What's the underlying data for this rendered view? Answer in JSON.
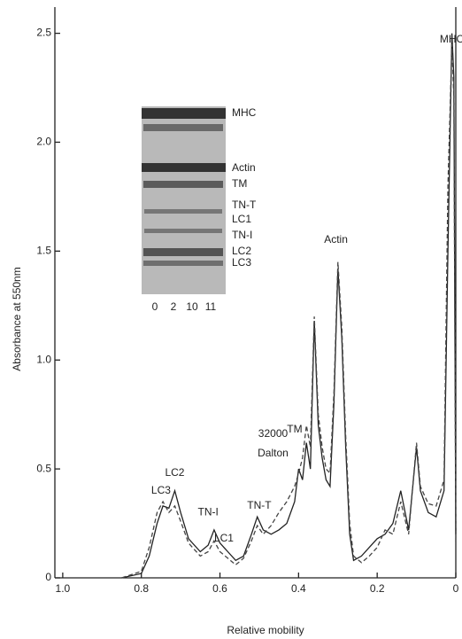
{
  "chart_data": {
    "type": "line",
    "y_label": "Absorbance at 550nm",
    "x_label": "Relative mobility",
    "xlim": [
      1.02,
      0
    ],
    "ylim": [
      0,
      2.6
    ],
    "xticks": [
      {
        "value": 1.0,
        "label": "1.0"
      },
      0.8,
      0.6,
      0.4,
      0.2,
      0
    ],
    "yticks": [
      0,
      0.5,
      {
        "value": 1.0,
        "label": "1.0"
      },
      1.5,
      {
        "value": 2.0,
        "label": "2.0"
      },
      2.5
    ],
    "x": [
      0.85,
      0.8,
      0.78,
      0.76,
      0.745,
      0.73,
      0.715,
      0.7,
      0.68,
      0.65,
      0.63,
      0.615,
      0.6,
      0.58,
      0.56,
      0.54,
      0.52,
      0.505,
      0.49,
      0.47,
      0.45,
      0.43,
      0.41,
      0.4,
      0.39,
      0.38,
      0.37,
      0.36,
      0.35,
      0.34,
      0.33,
      0.32,
      0.31,
      0.3,
      0.29,
      0.28,
      0.27,
      0.26,
      0.24,
      0.22,
      0.2,
      0.18,
      0.16,
      0.14,
      0.12,
      0.1,
      0.09,
      0.07,
      0.05,
      0.03,
      0.02,
      0.01,
      0.005,
      0.0
    ],
    "series": [
      {
        "color": "#222222",
        "dashed": false,
        "values": [
          0.0,
          0.02,
          0.1,
          0.25,
          0.33,
          0.32,
          0.4,
          0.3,
          0.18,
          0.12,
          0.15,
          0.22,
          0.16,
          0.12,
          0.08,
          0.1,
          0.2,
          0.28,
          0.22,
          0.2,
          0.22,
          0.25,
          0.35,
          0.5,
          0.45,
          0.62,
          0.5,
          1.18,
          0.7,
          0.55,
          0.45,
          0.42,
          0.8,
          1.42,
          1.1,
          0.6,
          0.2,
          0.08,
          0.1,
          0.14,
          0.18,
          0.2,
          0.25,
          0.4,
          0.22,
          0.6,
          0.4,
          0.3,
          0.28,
          0.4,
          1.5,
          2.5,
          2.3,
          0.2
        ]
      },
      {
        "color": "#444444",
        "dashed": true,
        "values": [
          0.0,
          0.03,
          0.14,
          0.3,
          0.35,
          0.3,
          0.33,
          0.26,
          0.16,
          0.1,
          0.12,
          0.17,
          0.12,
          0.09,
          0.06,
          0.09,
          0.17,
          0.24,
          0.2,
          0.24,
          0.3,
          0.35,
          0.42,
          0.48,
          0.55,
          0.7,
          0.6,
          1.2,
          0.75,
          0.6,
          0.5,
          0.48,
          0.85,
          1.45,
          1.15,
          0.65,
          0.25,
          0.1,
          0.07,
          0.1,
          0.14,
          0.22,
          0.2,
          0.35,
          0.2,
          0.62,
          0.42,
          0.34,
          0.33,
          0.45,
          1.8,
          2.45,
          2.2,
          0.15
        ]
      }
    ],
    "annotations": [
      {
        "text": "MHC",
        "x": 0.01,
        "y": 2.47
      },
      {
        "text": "Actin",
        "x": 0.305,
        "y": 1.55
      },
      {
        "text": "TM",
        "x": 0.41,
        "y": 0.68
      },
      {
        "text": "32000",
        "x": 0.465,
        "y": 0.66
      },
      {
        "text": "Dalton",
        "x": 0.465,
        "y": 0.57
      },
      {
        "text": "TN-T",
        "x": 0.5,
        "y": 0.33
      },
      {
        "text": "TN-I",
        "x": 0.63,
        "y": 0.3
      },
      {
        "text": "LC1",
        "x": 0.59,
        "y": 0.18
      },
      {
        "text": "LC2",
        "x": 0.715,
        "y": 0.48
      },
      {
        "text": "LC3",
        "x": 0.75,
        "y": 0.4
      }
    ],
    "inset": {
      "bands": [
        "MHC",
        "Actin",
        "TM",
        "TN-T",
        "LC1",
        "TN-I",
        "LC2",
        "LC3"
      ],
      "lanes": [
        "0",
        "2",
        "10",
        "11"
      ]
    }
  }
}
